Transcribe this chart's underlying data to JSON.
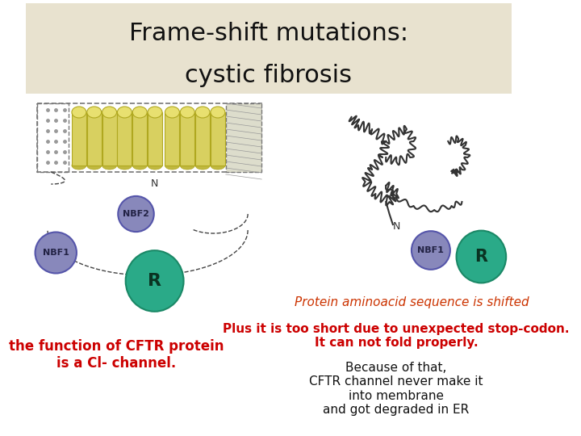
{
  "title_line1": "Frame-shift mutations:",
  "title_line2": "cystic fibrosis",
  "title_bg": "#e8e2cf",
  "bg_color": "#ffffff",
  "left_label_text": "the function of CFTR protein\nis a Cl- channel.",
  "right_top_text": "Plus it is too short due to unexpected stop-codon.\nIt can not fold properly.",
  "right_bottom_text": "Because of that,\nCFTR channel never make it\ninto membrane\nand got degraded in ER",
  "protein_shifted_text": "Protein aminoacid sequence is shifted",
  "title_fontsize": 22,
  "body_fontsize": 11
}
